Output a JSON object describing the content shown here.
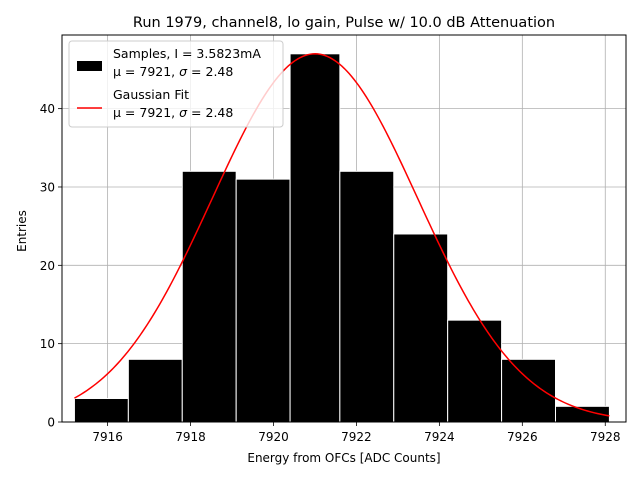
{
  "chart_data": {
    "type": "histogram",
    "title": "Run 1979, channel8, lo gain, Pulse w/ 10.0 dB Attenuation",
    "xlabel": "Energy from OFCs [ADC Counts]",
    "ylabel": "Entries",
    "xlim": [
      7914.9,
      7928.5
    ],
    "ylim": [
      0,
      49.4
    ],
    "xticks": [
      7916,
      7918,
      7920,
      7922,
      7924,
      7926,
      7928
    ],
    "yticks": [
      0,
      10,
      20,
      30,
      40
    ],
    "grid": true,
    "bins": {
      "edges": [
        7915.2,
        7916.5,
        7917.8,
        7919.1,
        7920.4,
        7921.6,
        7922.9,
        7924.2,
        7925.5,
        7926.8,
        7928.1
      ],
      "counts": [
        3,
        8,
        32,
        31,
        47,
        32,
        24,
        13,
        8,
        2
      ],
      "color": "#000000"
    },
    "gaussian_fit": {
      "mu": 7921.0,
      "sigma": 2.48,
      "amplitude": 47.0,
      "x_range": [
        7915.2,
        7928.1
      ],
      "color": "#ff0000"
    },
    "legend": {
      "placement": "upper-left",
      "entries": [
        {
          "line1": "Samples, I = 3.5823mA",
          "line2_prefix": "μ = 7921, ",
          "line2_symbol": "σ",
          "line2_suffix": " = 2.48",
          "marker": "patch",
          "color": "#000000"
        },
        {
          "line1": "Gaussian Fit",
          "line2_prefix": "μ = 7921, ",
          "line2_symbol": "σ",
          "line2_suffix": " = 2.48",
          "marker": "line",
          "color": "#ff0000"
        }
      ]
    }
  }
}
